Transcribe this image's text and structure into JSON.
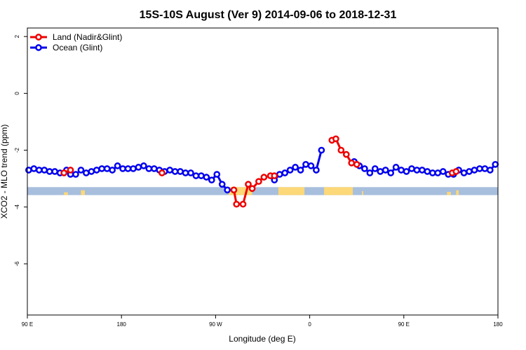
{
  "chart_data": {
    "type": "line",
    "title": "15S-10S August (Ver 9)   2014-09-06 to 2018-12-31",
    "xlabel": "Longitude (deg E)",
    "ylabel": "XCO2 - MLO trend (ppm)",
    "xlim": [
      90,
      450
    ],
    "ylim": [
      -7.8,
      2.3
    ],
    "x_ticks": [
      {
        "value": 90,
        "label": "90 E"
      },
      {
        "value": 162,
        "label": "180"
      },
      {
        "value": 234,
        "label": "90 W"
      },
      {
        "value": 306,
        "label": "0"
      },
      {
        "value": 378,
        "label": "90 E"
      },
      {
        "value": 450,
        "label": "180"
      }
    ],
    "y_ticks": [
      {
        "value": 2,
        "label": "2"
      },
      {
        "value": 0,
        "label": "0"
      },
      {
        "value": -2,
        "label": "-2"
      },
      {
        "value": -4,
        "label": "-4"
      },
      {
        "value": -6,
        "label": "-6"
      }
    ],
    "legend_position": "top-left",
    "band": {
      "y_top": -3.3,
      "y_bottom": -3.58,
      "ocean_color": "#a7bedd",
      "land_color": "#fdd878"
    },
    "land_in_band": [
      [
        118,
        121,
        0.35
      ],
      [
        131,
        134,
        0.6
      ],
      [
        244,
        262,
        1.0
      ],
      [
        282,
        302,
        1.0
      ],
      [
        317,
        339,
        1.0
      ],
      [
        346,
        347,
        0.5
      ],
      [
        411,
        414,
        0.4
      ],
      [
        418,
        420,
        0.6
      ]
    ],
    "series": [
      {
        "name": "Land (Nadir&Glint)",
        "color": "#ee0000",
        "x": [
          118,
          123,
          193,
          248,
          250,
          255,
          259,
          262,
          267,
          271,
          276,
          279,
          323,
          326,
          330,
          334,
          338,
          342,
          415,
          418
        ],
        "y": [
          -2.8,
          -2.7,
          -2.8,
          -3.4,
          -3.9,
          -3.9,
          -3.2,
          -3.35,
          -3.1,
          -2.95,
          -2.9,
          -2.9,
          -1.65,
          -1.6,
          -2.0,
          -2.15,
          -2.45,
          -2.5,
          -2.8,
          -2.75
        ]
      },
      {
        "name": "Ocean (Glint)",
        "color": "#0000ee",
        "x": [
          91,
          95,
          99,
          103,
          107,
          111,
          115,
          120,
          123,
          127,
          131,
          135,
          139,
          143,
          147,
          151,
          155,
          159,
          163,
          167,
          171,
          175,
          179,
          183,
          187,
          191,
          195,
          199,
          203,
          207,
          211,
          215,
          219,
          223,
          227,
          231,
          235,
          239,
          243,
          279,
          283,
          287,
          291,
          295,
          299,
          303,
          307,
          311,
          315,
          340,
          344,
          348,
          352,
          356,
          360,
          364,
          368,
          372,
          376,
          380,
          384,
          388,
          392,
          396,
          400,
          404,
          408,
          412,
          416,
          420,
          424,
          428,
          432,
          436,
          440,
          444,
          448
        ],
        "y": [
          -2.7,
          -2.65,
          -2.7,
          -2.7,
          -2.75,
          -2.75,
          -2.8,
          -2.7,
          -2.85,
          -2.85,
          -2.7,
          -2.8,
          -2.75,
          -2.7,
          -2.65,
          -2.65,
          -2.7,
          -2.55,
          -2.65,
          -2.65,
          -2.65,
          -2.6,
          -2.55,
          -2.65,
          -2.65,
          -2.7,
          -2.75,
          -2.7,
          -2.75,
          -2.75,
          -2.8,
          -2.8,
          -2.9,
          -2.9,
          -2.95,
          -3.05,
          -2.85,
          -3.2,
          -3.4,
          -3.05,
          -2.85,
          -2.8,
          -2.7,
          -2.6,
          -2.7,
          -2.5,
          -2.55,
          -2.7,
          -2.0,
          -2.4,
          -2.55,
          -2.65,
          -2.8,
          -2.65,
          -2.75,
          -2.7,
          -2.8,
          -2.6,
          -2.7,
          -2.75,
          -2.65,
          -2.7,
          -2.7,
          -2.75,
          -2.8,
          -2.8,
          -2.75,
          -2.85,
          -2.85,
          -2.7,
          -2.8,
          -2.75,
          -2.7,
          -2.65,
          -2.65,
          -2.7,
          -2.5
        ]
      }
    ]
  }
}
